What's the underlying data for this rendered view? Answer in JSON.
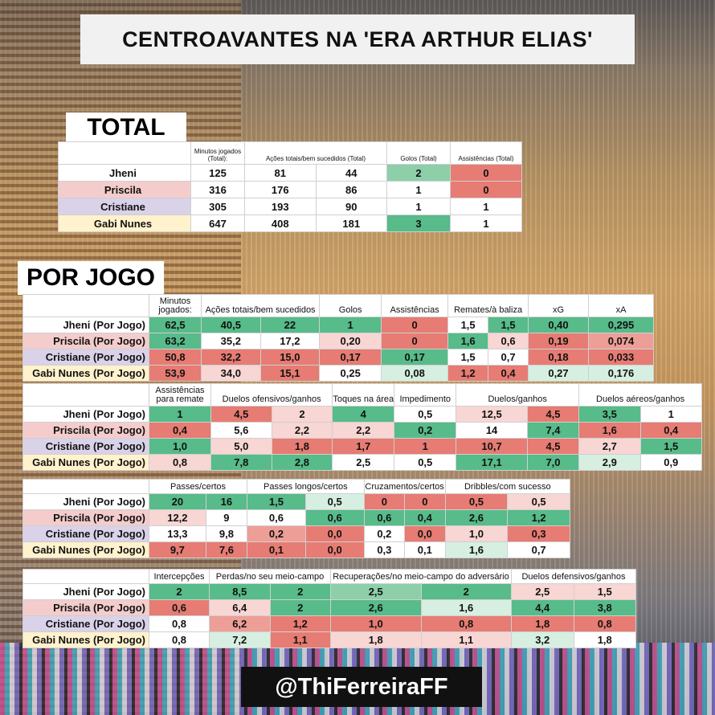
{
  "title": "CENTROAVANTES NA 'ERA ARTHUR ELIAS'",
  "total_label": "TOTAL",
  "por_jogo_label": "POR JOGO",
  "footer_handle": "@ThiFerreiraFF",
  "total_table": {
    "headers": [
      "Minutos jogados (Total):",
      "Ações totais/bem sucedidos  (Total)",
      "Golos (Total)",
      "Assistências  (Total)"
    ],
    "rows": [
      {
        "name": "Jheni",
        "values": [
          "125",
          "81",
          "44",
          "2",
          "0"
        ]
      },
      {
        "name": "Priscila",
        "values": [
          "316",
          "176",
          "86",
          "1",
          "0"
        ]
      },
      {
        "name": "Cristiane",
        "values": [
          "305",
          "193",
          "90",
          "1",
          "1"
        ]
      },
      {
        "name": "Gabi Nunes",
        "values": [
          "647",
          "408",
          "181",
          "3",
          "1"
        ]
      }
    ]
  },
  "t2": {
    "headers": [
      "Minutos jogados:",
      "Ações totais/bem sucedidos",
      "Golos",
      "Assistências",
      "Remates/à baliza",
      "xG",
      "xA"
    ],
    "rows": [
      {
        "name": "Jheni (Por Jogo)",
        "values": [
          "62,5",
          "40,5",
          "22",
          "1",
          "0",
          "1,5",
          "1,5",
          "0,40",
          "0,295"
        ]
      },
      {
        "name": "Priscila (Por Jogo)",
        "values": [
          "63,2",
          "35,2",
          "17,2",
          "0,20",
          "0",
          "1,6",
          "0,6",
          "0,19",
          "0,074"
        ]
      },
      {
        "name": "Cristiane (Por Jogo)",
        "values": [
          "50,8",
          "32,2",
          "15,0",
          "0,17",
          "0,17",
          "1,5",
          "0,7",
          "0,18",
          "0,033"
        ]
      },
      {
        "name": "Gabi Nunes (Por Jogo)",
        "values": [
          "53,9",
          "34,0",
          "15,1",
          "0,25",
          "0,08",
          "1,2",
          "0,4",
          "0,27",
          "0,176"
        ]
      }
    ]
  },
  "t3": {
    "headers": [
      "Assistências para remate",
      "Duelos ofensivos/ganhos",
      "Toques na área",
      "Impedimento",
      "Duelos/ganhos",
      "Duelos aéreos/ganhos"
    ],
    "rows": [
      {
        "name": "Jheni (Por Jogo)",
        "values": [
          "1",
          "4,5",
          "2",
          "4",
          "0,5",
          "12,5",
          "4,5",
          "3,5",
          "1"
        ]
      },
      {
        "name": "Priscila (Por Jogo)",
        "values": [
          "0,4",
          "5,6",
          "2,2",
          "2,2",
          "0,2",
          "14",
          "7,4",
          "1,6",
          "0,4"
        ]
      },
      {
        "name": "Cristiane (Por Jogo)",
        "values": [
          "1,0",
          "5,0",
          "1,8",
          "1,7",
          "1",
          "10,7",
          "4,5",
          "2,7",
          "1,5"
        ]
      },
      {
        "name": "Gabi Nunes (Por Jogo)",
        "values": [
          "0,8",
          "7,8",
          "2,8",
          "2,5",
          "0,5",
          "17,1",
          "7,0",
          "2,9",
          "0,9"
        ]
      }
    ]
  },
  "t4": {
    "headers": [
      "Passes/certos",
      "Passes longos/certos",
      "Cruzamentos/certos",
      "Dribbles/com sucesso"
    ],
    "rows": [
      {
        "name": "Jheni (Por Jogo)",
        "values": [
          "20",
          "16",
          "1,5",
          "0,5",
          "0",
          "0",
          "0,5",
          "0,5"
        ]
      },
      {
        "name": "Priscila (Por Jogo)",
        "values": [
          "12,2",
          "9",
          "0,6",
          "0,6",
          "0,6",
          "0,4",
          "2,6",
          "1,2"
        ]
      },
      {
        "name": "Cristiane (Por Jogo)",
        "values": [
          "13,3",
          "9,8",
          "0,2",
          "0,0",
          "0,2",
          "0,0",
          "1,0",
          "0,3"
        ]
      },
      {
        "name": "Gabi Nunes (Por Jogo)",
        "values": [
          "9,7",
          "7,6",
          "0,1",
          "0,0",
          "0,3",
          "0,1",
          "1,6",
          "0,7"
        ]
      }
    ]
  },
  "t5": {
    "headers": [
      "Intercepções",
      "Perdas/no seu meio-campo",
      "Recuperações/no meio-campo do adversário",
      "Duelos defensivos/ganhos"
    ],
    "rows": [
      {
        "name": "Jheni (Por Jogo)",
        "values": [
          "2",
          "8,5",
          "2",
          "2,5",
          "2",
          "2,5",
          "1,5"
        ]
      },
      {
        "name": "Priscila (Por Jogo)",
        "values": [
          "0,6",
          "6,4",
          "2",
          "2,6",
          "1,6",
          "4,4",
          "3,8"
        ]
      },
      {
        "name": "Cristiane (Por Jogo)",
        "values": [
          "0,8",
          "6,2",
          "1,2",
          "1,0",
          "0,8",
          "1,8",
          "0,8"
        ]
      },
      {
        "name": "Gabi Nunes (Por Jogo)",
        "values": [
          "0,8",
          "7,2",
          "1,1",
          "1,8",
          "1,1",
          "3,2",
          "1,8"
        ]
      }
    ]
  },
  "colors": {
    "strong_green": "#57bb8a",
    "light_green": "#d6efe0",
    "strong_red": "#e67c73",
    "light_red": "#f7d6d3",
    "priscila_row": "#f4cccc",
    "cristiane_row": "#d9d2e9",
    "gabi_row": "#fff2cc"
  }
}
